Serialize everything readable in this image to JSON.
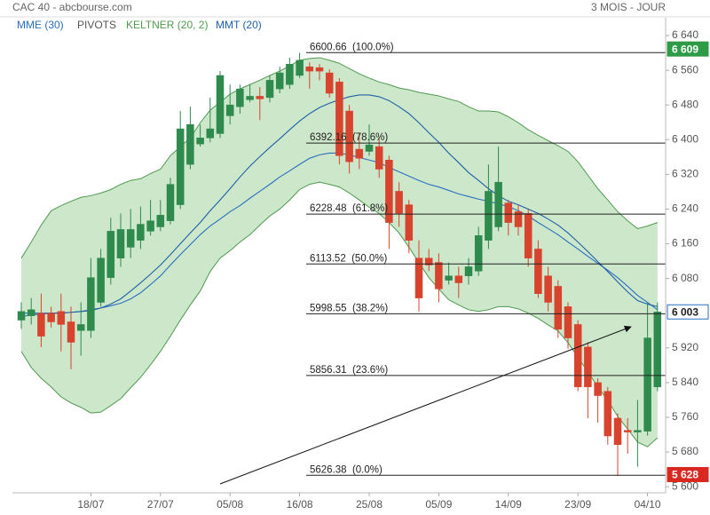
{
  "chart_data": {
    "type": "candlestick",
    "title": "CAC 40 - abcbourse.com",
    "subtitle": "3 MOIS - JOUR",
    "categories": [
      null,
      null,
      null,
      null,
      null,
      null,
      null,
      "18/07",
      null,
      null,
      null,
      null,
      null,
      null,
      "27/07",
      null,
      null,
      null,
      null,
      null,
      null,
      "05/08",
      null,
      null,
      null,
      null,
      null,
      null,
      "16/08",
      null,
      null,
      null,
      null,
      null,
      null,
      "25/08",
      null,
      null,
      null,
      null,
      null,
      null,
      "05/09",
      null,
      null,
      null,
      null,
      null,
      null,
      "14/09",
      null,
      null,
      null,
      null,
      null,
      null,
      "23/09",
      null,
      null,
      null,
      null,
      null,
      null,
      "04/10",
      null
    ],
    "open": [
      5984,
      5994,
      6000,
      6000,
      6004,
      5980,
      5960,
      5960,
      6025,
      6082,
      6127,
      6152,
      6168,
      6189,
      6199,
      6213,
      6250,
      6343,
      6390,
      6404,
      6414,
      6455,
      6476,
      6492,
      6500,
      6497,
      6517,
      6527,
      6548,
      6568,
      6566,
      6554,
      6533,
      6466,
      6378,
      6373,
      6384,
      6353,
      6281,
      6250,
      6127,
      6127,
      6117,
      6076,
      6086,
      6086,
      6097,
      6168,
      6199,
      6254,
      6234,
      6230,
      6148,
      6086,
      6062,
      6015,
      5974,
      5922,
      5840,
      5820,
      5758,
      5730,
      5726,
      5728,
      5830
    ],
    "high": [
      6025,
      6035,
      6045,
      6015,
      6045,
      6015,
      6025,
      6127,
      6148,
      6220,
      6230,
      6240,
      6246,
      6261,
      6261,
      6312,
      6466,
      6476,
      6435,
      6497,
      6558,
      6527,
      6527,
      6527,
      6521,
      6548,
      6568,
      6589,
      6600,
      6578,
      6574,
      6562,
      6542,
      6480,
      6414,
      6435,
      6404,
      6363,
      6302,
      6261,
      6168,
      6148,
      6138,
      6117,
      6107,
      6127,
      6199,
      6343,
      6384,
      6261,
      6250,
      6240,
      6168,
      6107,
      6076,
      6025,
      5984,
      5933,
      5850,
      5830,
      5769,
      5758,
      5800,
      6025,
      6025
    ],
    "low": [
      5964,
      5974,
      5922,
      5967,
      5912,
      5871,
      5902,
      5943,
      6015,
      6066,
      6107,
      6127,
      6148,
      6179,
      6189,
      6205,
      6240,
      6332,
      6384,
      6394,
      6404,
      6435,
      6460,
      6486,
      6445,
      6486,
      6507,
      6517,
      6542,
      6517,
      6537,
      6497,
      6343,
      6322,
      6332,
      6363,
      6312,
      6148,
      6199,
      6138,
      6004,
      6097,
      6025,
      6066,
      6035,
      6066,
      6086,
      6148,
      6189,
      6179,
      6179,
      6107,
      6035,
      6004,
      5943,
      5918,
      5820,
      5758,
      5748,
      5697,
      5625,
      5676,
      5646,
      5718,
      5820
    ],
    "close": [
      6004,
      6008,
      5947,
      5980,
      5974,
      5933,
      5974,
      6082,
      6127,
      6189,
      6193,
      6193,
      6205,
      6213,
      6226,
      6297,
      6425,
      6435,
      6404,
      6425,
      6548,
      6480,
      6517,
      6500,
      6494,
      6537,
      6554,
      6574,
      6583,
      6558,
      6558,
      6507,
      6363,
      6349,
      6357,
      6388,
      6332,
      6209,
      6230,
      6168,
      6035,
      6111,
      6056,
      6086,
      6070,
      6107,
      6179,
      6281,
      6302,
      6209,
      6199,
      6127,
      6045,
      6025,
      5963,
      5943,
      5830,
      5830,
      5810,
      5717,
      5697,
      5726,
      5730,
      5943,
      6003
    ],
    "up_color": "#2f8a4e",
    "down_color": "#d8432e",
    "series": [
      {
        "name": "MME (30)",
        "color": "#2a6fc0",
        "values": [
          5992,
          5996,
          5998,
          6000,
          6000,
          6002,
          6004,
          6008,
          6012,
          6017,
          6023,
          6033,
          6047,
          6066,
          6086,
          6111,
          6135,
          6158,
          6181,
          6201,
          6217,
          6234,
          6248,
          6265,
          6281,
          6297,
          6314,
          6328,
          6343,
          6357,
          6365,
          6369,
          6369,
          6365,
          6359,
          6353,
          6347,
          6336,
          6326,
          6316,
          6306,
          6297,
          6291,
          6283,
          6275,
          6269,
          6263,
          6258,
          6252,
          6246,
          6236,
          6224,
          6209,
          6195,
          6181,
          6164,
          6148,
          6131,
          6115,
          6099,
          6082,
          6062,
          6041,
          6025,
          6008
        ]
      },
      {
        "name": "MMT (20)",
        "color": "#1f5fa8",
        "values": [
          6000,
          6000,
          6000,
          6000,
          6000,
          6002,
          6004,
          6006,
          6012,
          6021,
          6033,
          6051,
          6070,
          6090,
          6111,
          6135,
          6160,
          6185,
          6209,
          6236,
          6261,
          6287,
          6314,
          6339,
          6361,
          6382,
          6402,
          6423,
          6443,
          6460,
          6474,
          6484,
          6492,
          6499,
          6503,
          6503,
          6499,
          6490,
          6476,
          6460,
          6439,
          6416,
          6394,
          6369,
          6347,
          6324,
          6306,
          6287,
          6271,
          6258,
          6250,
          6240,
          6230,
          6217,
          6203,
          6185,
          6164,
          6142,
          6119,
          6096,
          6072,
          6049,
          6029,
          6021,
          6015
        ]
      }
    ],
    "keltner": {
      "name": "KELTNER (20, 2)",
      "color": "#4f9a4f",
      "fill": "#c9e6c6",
      "upper": [
        6127,
        6164,
        6203,
        6236,
        6248,
        6258,
        6267,
        6271,
        6277,
        6285,
        6297,
        6306,
        6310,
        6322,
        6332,
        6363,
        6384,
        6404,
        6439,
        6468,
        6486,
        6505,
        6517,
        6527,
        6537,
        6548,
        6558,
        6570,
        6583,
        6587,
        6589,
        6583,
        6576,
        6564,
        6552,
        6542,
        6533,
        6527,
        6519,
        6515,
        6509,
        6505,
        6501,
        6494,
        6488,
        6476,
        6466,
        6466,
        6464,
        6453,
        6439,
        6423,
        6410,
        6398,
        6386,
        6373,
        6349,
        6318,
        6287,
        6261,
        6234,
        6213,
        6195,
        6201,
        6209
      ],
      "lower": [
        5912,
        5875,
        5850,
        5830,
        5807,
        5793,
        5783,
        5770,
        5772,
        5787,
        5803,
        5828,
        5852,
        5881,
        5912,
        5947,
        5984,
        6019,
        6051,
        6096,
        6127,
        6144,
        6164,
        6181,
        6203,
        6224,
        6240,
        6261,
        6285,
        6297,
        6302,
        6297,
        6291,
        6277,
        6261,
        6244,
        6230,
        6209,
        6185,
        6152,
        6117,
        6082,
        6056,
        6031,
        6019,
        6008,
        6004,
        6008,
        6015,
        6015,
        6010,
        6000,
        5988,
        5973,
        5959,
        5932,
        5898,
        5865,
        5830,
        5799,
        5762,
        5733,
        5703,
        5692,
        5713
      ]
    },
    "pivots": {
      "name": "PIVOTS",
      "color": "#555555",
      "line_color": "#222222",
      "levels": [
        {
          "value": 6600.66,
          "label": "6600.66  (100.0%)"
        },
        {
          "value": 6392.16,
          "label": "6392.16  (78.6%)"
        },
        {
          "value": 6228.48,
          "label": "6228.48  (61.8%)"
        },
        {
          "value": 6113.52,
          "label": "6113.52  (50.0%)"
        },
        {
          "value": 5998.55,
          "label": "5998.55  (38.2%)"
        },
        {
          "value": 5856.31,
          "label": "5856.31  (23.6%)"
        },
        {
          "value": 5626.38,
          "label": "5626.38  (0.0%)"
        }
      ]
    },
    "price_tags": [
      {
        "value": 6609,
        "label": "6 609",
        "color": "#2e9b46",
        "text_color": "#ffffff"
      },
      {
        "value": 6003,
        "label": "6 003",
        "color": "#ffffff",
        "text_color": "#222222"
      },
      {
        "value": 5628,
        "label": "5 628",
        "color": "#d9281f",
        "text_color": "#ffffff"
      }
    ],
    "ylim": [
      5586,
      6681
    ],
    "yticks": [
      {
        "value": 6640,
        "label": "6 640"
      },
      {
        "value": 6560,
        "label": "6 560"
      },
      {
        "value": 6480,
        "label": "6 480"
      },
      {
        "value": 6400,
        "label": "6 400"
      },
      {
        "value": 6320,
        "label": "6 320"
      },
      {
        "value": 6240,
        "label": "6 240"
      },
      {
        "value": 6160,
        "label": "6 160"
      },
      {
        "value": 6080,
        "label": "6 080"
      },
      {
        "value": 5920,
        "label": "5 920"
      },
      {
        "value": 5840,
        "label": "5 840"
      },
      {
        "value": 5760,
        "label": "5 760"
      },
      {
        "value": 5680,
        "label": "5 680"
      },
      {
        "value": 5600,
        "label": "5 600"
      }
    ],
    "grid": false
  }
}
